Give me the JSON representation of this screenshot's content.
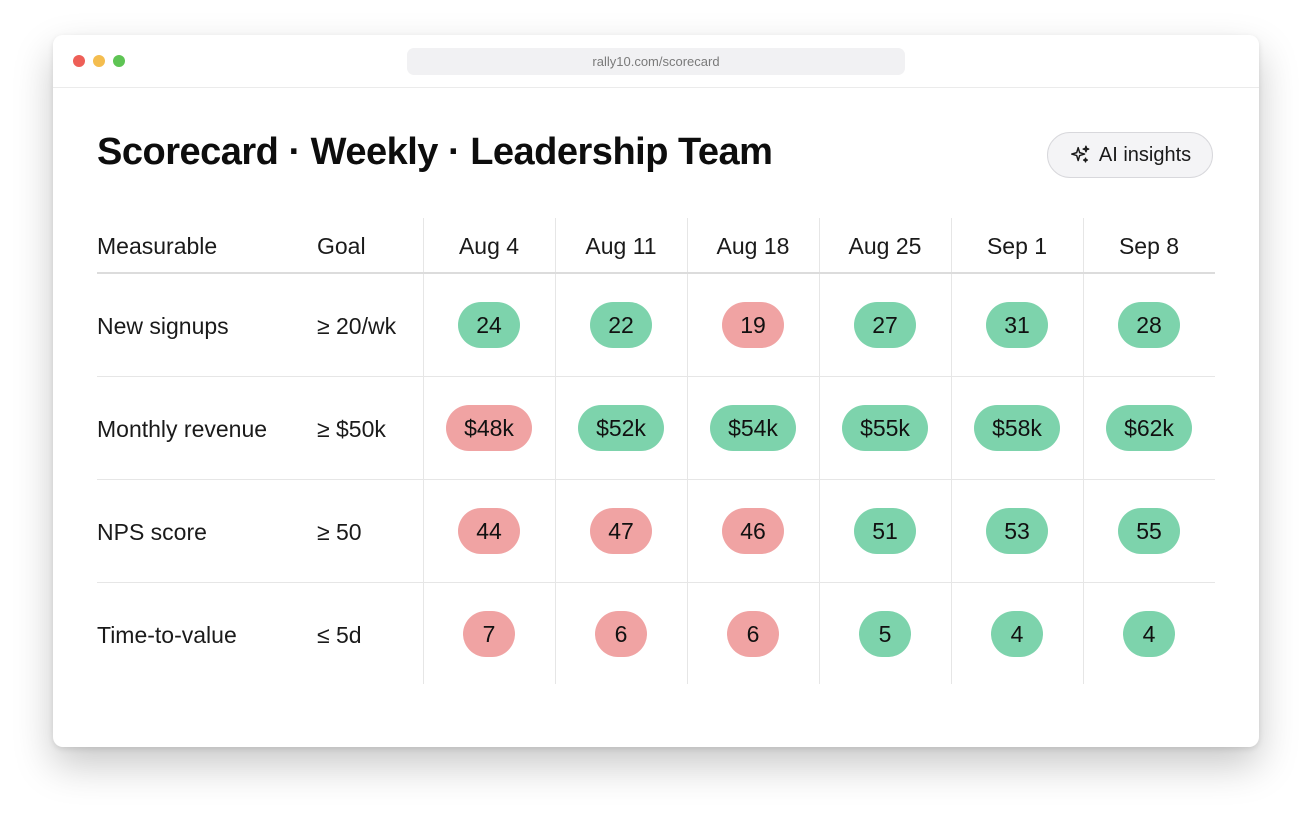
{
  "browser": {
    "url": "rally10.com/scorecard"
  },
  "page": {
    "title": "Scorecard · Weekly · Leadership Team",
    "ai_button_label": "AI insights",
    "ai_button_icon": "sparkle-icon"
  },
  "colors": {
    "good": "#7dd3ac",
    "bad": "#f0a3a3"
  },
  "table": {
    "headers": {
      "measurable": "Measurable",
      "goal": "Goal"
    },
    "weeks": [
      "Aug 4",
      "Aug 11",
      "Aug 18",
      "Aug 25",
      "Sep 1",
      "Sep 8"
    ],
    "rows": [
      {
        "measurable": "New signups",
        "goal": "≥ 20/wk",
        "values": [
          {
            "text": "24",
            "status": "good"
          },
          {
            "text": "22",
            "status": "good"
          },
          {
            "text": "19",
            "status": "bad"
          },
          {
            "text": "27",
            "status": "good"
          },
          {
            "text": "31",
            "status": "good"
          },
          {
            "text": "28",
            "status": "good"
          }
        ]
      },
      {
        "measurable": "Monthly revenue",
        "goal": "≥ $50k",
        "values": [
          {
            "text": "$48k",
            "status": "bad"
          },
          {
            "text": "$52k",
            "status": "good"
          },
          {
            "text": "$54k",
            "status": "good"
          },
          {
            "text": "$55k",
            "status": "good"
          },
          {
            "text": "$58k",
            "status": "good"
          },
          {
            "text": "$62k",
            "status": "good"
          }
        ]
      },
      {
        "measurable": "NPS score",
        "goal": "≥ 50",
        "values": [
          {
            "text": "44",
            "status": "bad"
          },
          {
            "text": "47",
            "status": "bad"
          },
          {
            "text": "46",
            "status": "bad"
          },
          {
            "text": "51",
            "status": "good"
          },
          {
            "text": "53",
            "status": "good"
          },
          {
            "text": "55",
            "status": "good"
          }
        ]
      },
      {
        "measurable": "Time-to-value",
        "goal": "≤ 5d",
        "values": [
          {
            "text": "7",
            "status": "bad"
          },
          {
            "text": "6",
            "status": "bad"
          },
          {
            "text": "6",
            "status": "bad"
          },
          {
            "text": "5",
            "status": "good"
          },
          {
            "text": "4",
            "status": "good"
          },
          {
            "text": "4",
            "status": "good"
          }
        ]
      }
    ]
  }
}
